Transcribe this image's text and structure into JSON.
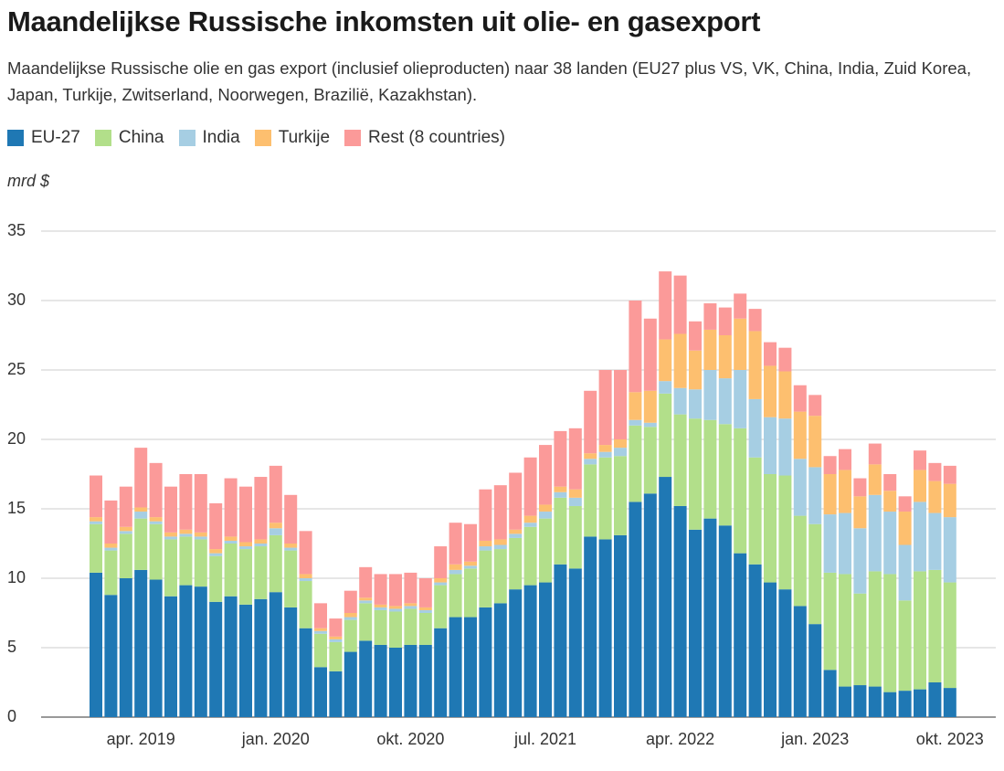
{
  "chart_data": {
    "type": "stacked-bar",
    "title": "Maandelijkse Russische inkomsten uit olie- en gasexport",
    "subtitle": "Maandelijkse Russische olie en gas export (inclusief olieproducten) naar 38 landen (EU27 plus VS, VK, China, India, Zuid Korea, Japan, Turkije, Zwitserland, Noorwegen, Brazilië, Kazakhstan).",
    "y_label": "mrd $",
    "categories": [
      null,
      null,
      null,
      "apr. 2019",
      null,
      null,
      null,
      null,
      null,
      null,
      null,
      null,
      "jan. 2020",
      null,
      null,
      null,
      null,
      null,
      null,
      null,
      null,
      "okt. 2020",
      null,
      null,
      null,
      null,
      null,
      null,
      null,
      null,
      "jul. 2021",
      null,
      null,
      null,
      null,
      null,
      null,
      null,
      null,
      "apr. 2022",
      null,
      null,
      null,
      null,
      null,
      null,
      null,
      null,
      "jan. 2023",
      null,
      null,
      null,
      null,
      null,
      null,
      null,
      null,
      "okt. 2023"
    ],
    "series": [
      {
        "name": "EU-27",
        "color": "#1f78b4",
        "values": [
          10.4,
          8.8,
          10.0,
          10.6,
          9.9,
          8.7,
          9.5,
          9.4,
          8.3,
          8.7,
          8.1,
          8.5,
          9.0,
          7.9,
          6.4,
          3.6,
          3.3,
          4.7,
          5.5,
          5.2,
          5.0,
          5.2,
          5.2,
          6.4,
          7.2,
          7.2,
          7.9,
          8.2,
          9.2,
          9.5,
          9.7,
          11.0,
          10.7,
          13.0,
          12.8,
          13.1,
          15.5,
          16.1,
          17.3,
          15.2,
          13.5,
          14.3,
          13.8,
          11.8,
          11.0,
          9.7,
          9.2,
          8.0,
          6.7,
          3.4,
          2.2,
          2.3,
          2.2,
          1.8,
          1.9,
          2.0,
          2.5,
          2.1
        ]
      },
      {
        "name": "China",
        "color": "#b2df8a",
        "values": [
          3.5,
          3.2,
          3.2,
          3.7,
          4.0,
          4.1,
          3.5,
          3.4,
          3.3,
          3.8,
          4.0,
          3.8,
          4.1,
          4.1,
          3.4,
          2.4,
          2.1,
          2.3,
          2.7,
          2.5,
          2.6,
          2.6,
          2.3,
          3.1,
          3.1,
          3.5,
          4.1,
          3.9,
          3.7,
          4.2,
          4.6,
          4.8,
          4.5,
          5.2,
          5.9,
          5.7,
          5.5,
          4.8,
          6.0,
          6.6,
          8.0,
          7.1,
          7.3,
          9.0,
          7.7,
          7.8,
          8.2,
          6.5,
          7.2,
          7.0,
          8.1,
          6.6,
          8.3,
          8.5,
          6.5,
          8.5,
          8.1,
          7.6
        ]
      },
      {
        "name": "India",
        "color": "#a6cee3",
        "values": [
          0.2,
          0.2,
          0.2,
          0.5,
          0.2,
          0.2,
          0.2,
          0.2,
          0.2,
          0.2,
          0.2,
          0.2,
          0.5,
          0.2,
          0.2,
          0.2,
          0.2,
          0.2,
          0.2,
          0.2,
          0.2,
          0.2,
          0.2,
          0.2,
          0.3,
          0.2,
          0.3,
          0.3,
          0.3,
          0.3,
          0.5,
          0.4,
          0.6,
          0.4,
          0.4,
          0.6,
          0.4,
          0.3,
          0.9,
          1.9,
          2.1,
          3.6,
          3.3,
          4.2,
          4.2,
          4.1,
          4.1,
          4.1,
          4.1,
          4.2,
          4.4,
          4.7,
          5.5,
          4.5,
          4.0,
          5.0,
          4.1,
          4.7
        ]
      },
      {
        "name": "Turkije",
        "color": "#fdbf6f",
        "values": [
          0.3,
          0.3,
          0.3,
          0.3,
          0.3,
          0.3,
          0.3,
          0.3,
          0.3,
          0.3,
          0.3,
          0.3,
          0.4,
          0.3,
          0.3,
          0.2,
          0.2,
          0.3,
          0.2,
          0.2,
          0.2,
          0.2,
          0.2,
          0.3,
          0.4,
          0.3,
          0.4,
          0.4,
          0.3,
          0.5,
          0.5,
          0.4,
          0.6,
          0.4,
          0.5,
          0.6,
          2.0,
          2.3,
          3.0,
          3.9,
          2.8,
          2.9,
          3.1,
          3.7,
          4.9,
          3.7,
          3.4,
          3.4,
          3.7,
          2.9,
          3.1,
          2.3,
          2.2,
          1.5,
          2.4,
          2.3,
          2.3,
          2.4
        ]
      },
      {
        "name": "Rest (8 countries)",
        "color": "#fb9a99",
        "values": [
          3.0,
          3.1,
          2.9,
          4.3,
          3.9,
          3.3,
          4.0,
          4.2,
          3.3,
          4.2,
          4.0,
          4.5,
          4.1,
          3.5,
          3.1,
          1.8,
          1.3,
          1.6,
          2.2,
          2.2,
          2.3,
          2.2,
          2.1,
          2.3,
          3.0,
          2.7,
          3.7,
          3.9,
          4.1,
          4.2,
          4.3,
          4.0,
          4.4,
          4.5,
          5.4,
          5.0,
          6.6,
          5.2,
          4.9,
          4.2,
          2.1,
          1.9,
          2.0,
          1.8,
          1.6,
          1.7,
          1.7,
          1.9,
          1.5,
          1.3,
          1.5,
          1.3,
          1.5,
          1.2,
          1.1,
          1.4,
          1.3,
          1.3
        ]
      }
    ],
    "ylim": [
      0,
      35
    ],
    "yticks": [
      0,
      5,
      10,
      15,
      20,
      25,
      30,
      35
    ],
    "grid": true
  }
}
